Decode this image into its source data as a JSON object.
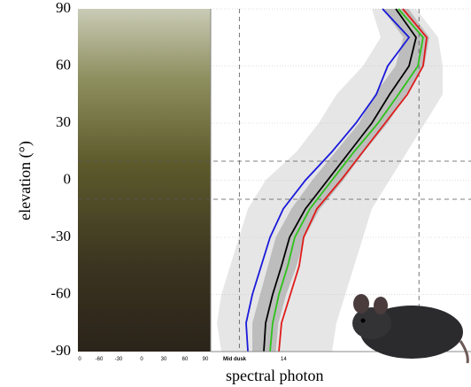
{
  "chart_data": {
    "type": "profile",
    "ylabel": "elevation (°)",
    "xlabel": "spectral photon",
    "annotations": [
      "Mid dusk",
      "14"
    ],
    "image_xticks": [
      "0",
      "-60",
      "-30",
      "0",
      "30",
      "60",
      "90"
    ],
    "elevation": [
      90,
      75,
      60,
      45,
      30,
      15,
      0,
      -15,
      -30,
      -45,
      -60,
      -75,
      -90
    ],
    "ylim": [
      -90,
      90
    ],
    "yticks": [
      90,
      60,
      30,
      0,
      -30,
      -60,
      -90
    ],
    "xlim": [
      0,
      100
    ],
    "hlines": [
      10,
      -10
    ],
    "vlines": [
      11,
      80
    ],
    "bands": [
      {
        "color": "#e6e6e6",
        "lower": [
          61.9,
          65.3,
          58.5,
          48.3,
          41.5,
          33.0,
          21.1,
          14.3,
          10.9,
          7.5,
          4.1,
          2.4,
          4.1
        ],
        "upper": [
          78.9,
          87.4,
          89.1,
          89.1,
          82.3,
          75.5,
          68.7,
          61.9,
          58.5,
          55.1,
          51.7,
          48.3,
          46.6
        ]
      },
      {
        "color": "#bdbdbd",
        "lower": [
          66,
          74,
          71,
          63,
          57,
          48,
          39,
          31,
          25,
          22,
          19,
          16,
          16
        ],
        "upper": [
          76,
          84,
          82,
          75,
          68,
          59,
          51,
          42,
          36,
          33,
          29,
          26,
          25
        ]
      }
    ],
    "series": [
      {
        "color": "#1a1adb",
        "values": [
          66.0,
          76.2,
          68.0,
          63.6,
          55.8,
          46.6,
          36.4,
          27.9,
          22.8,
          19.4,
          16.0,
          13.6,
          14.3
        ]
      },
      {
        "color": "#e01a1a",
        "values": [
          73.8,
          83.0,
          81.6,
          75.5,
          67.0,
          58.5,
          50.0,
          40.8,
          35.7,
          34.0,
          30.6,
          27.2,
          26.2
        ]
      },
      {
        "color": "#2ec21a",
        "values": [
          72.1,
          81.6,
          79.6,
          72.1,
          64.3,
          55.1,
          46.6,
          38.1,
          32.3,
          29.6,
          26.2,
          23.8,
          22.8
        ]
      },
      {
        "color": "#000000",
        "values": [
          71.1,
          78.9,
          76.2,
          68.7,
          61.9,
          53.4,
          44.9,
          36.4,
          30.3,
          27.2,
          23.8,
          21.1,
          20.4
        ]
      }
    ]
  }
}
